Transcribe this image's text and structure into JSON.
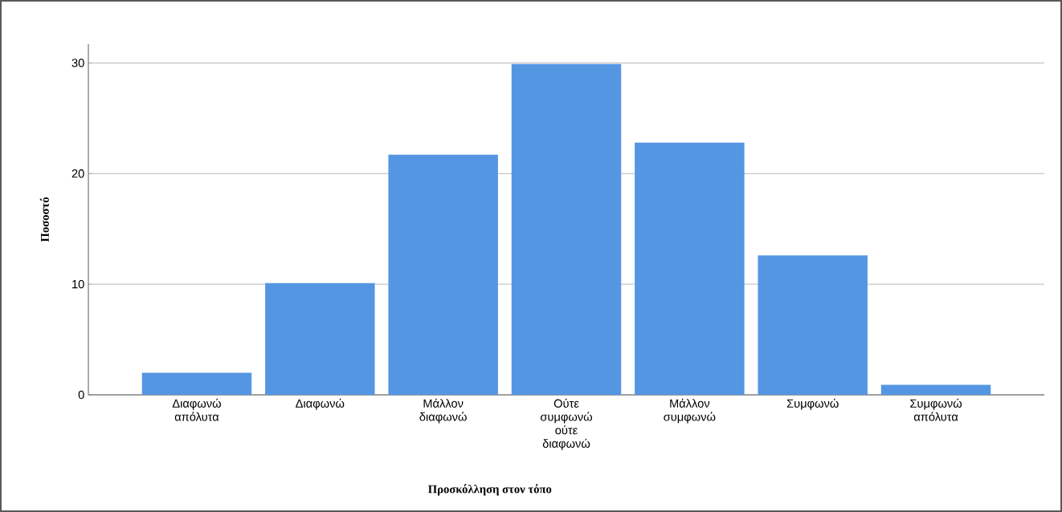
{
  "chart_data": {
    "type": "bar",
    "xlabel": "Προσκόλληση στον τόπο",
    "ylabel": "Ποσοστό",
    "categories": [
      "Διαφωνώ απόλυτα",
      "Διαφωνώ",
      "Μάλλον διαφωνώ",
      "Ούτε συμφωνώ ούτε διαφωνώ",
      "Μάλλον συμφωνώ",
      "Συμφωνώ",
      "Συμφωνώ απόλυτα"
    ],
    "values": [
      2.0,
      10.1,
      21.7,
      29.9,
      22.8,
      12.6,
      0.9
    ],
    "color": "#5596e3",
    "ylim": [
      0,
      31.7
    ],
    "yticks": [
      0,
      10,
      20,
      30
    ],
    "grid": "y"
  }
}
